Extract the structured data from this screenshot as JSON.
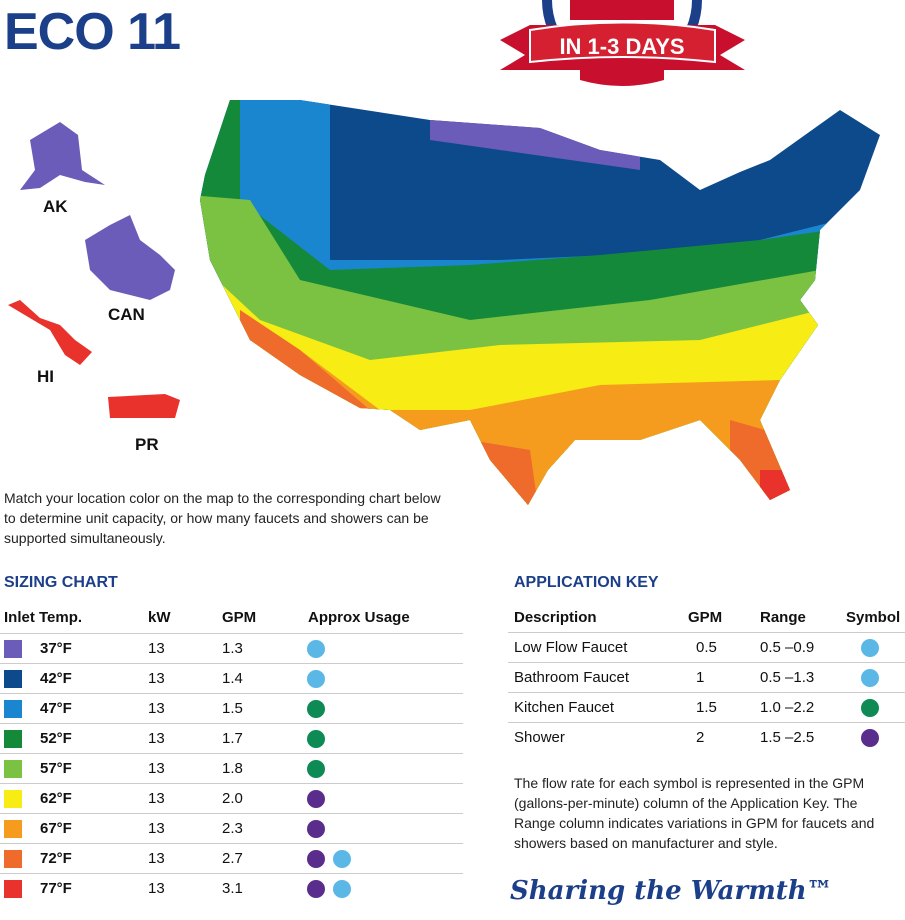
{
  "header": {
    "title": "ECO 11",
    "badge": "IN 1-3 DAYS"
  },
  "map": {
    "labels": [
      "AK",
      "CAN",
      "HI",
      "PR"
    ]
  },
  "intro": "Match your location color on the map to the corresponding chart below to determine unit capacity, or how many faucets and showers can be supported simultaneously.",
  "sizing_chart": {
    "title": "SIZING CHART",
    "columns": [
      "Inlet Temp.",
      "kW",
      "GPM",
      "Approx Usage"
    ],
    "rows": [
      {
        "color": "#6a5cb8",
        "temp": "37°F",
        "kw": "13",
        "gpm": "1.3"
      },
      {
        "color": "#0c4a8c",
        "temp": "42°F",
        "kw": "13",
        "gpm": "1.4"
      },
      {
        "color": "#1b86d0",
        "temp": "47°F",
        "kw": "13",
        "gpm": "1.5"
      },
      {
        "color": "#15893a",
        "temp": "52°F",
        "kw": "13",
        "gpm": "1.7"
      },
      {
        "color": "#7cc242",
        "temp": "57°F",
        "kw": "13",
        "gpm": "1.8"
      },
      {
        "color": "#f7ec13",
        "temp": "62°F",
        "kw": "13",
        "gpm": "2.0"
      },
      {
        "color": "#f59c1f",
        "temp": "67°F",
        "kw": "13",
        "gpm": "2.3"
      },
      {
        "color": "#ef6b2c",
        "temp": "72°F",
        "kw": "13",
        "gpm": "2.7"
      },
      {
        "color": "#e8322b",
        "temp": "77°F",
        "kw": "13",
        "gpm": "3.1"
      }
    ]
  },
  "application_key": {
    "title": "APPLICATION KEY",
    "columns": [
      "Description",
      "GPM",
      "Range",
      "Symbol"
    ],
    "rows": [
      {
        "description": "Low Flow Faucet",
        "gpm": "0.5",
        "range": "0.5 –0.9"
      },
      {
        "description": "Bathroom Faucet",
        "gpm": "1",
        "range": "0.5 –1.3"
      },
      {
        "description": "Kitchen Faucet",
        "gpm": "1.5",
        "range": "1.0 –2.2"
      },
      {
        "description": "Shower",
        "gpm": "2",
        "range": "1.5 –2.5"
      }
    ],
    "note": "The flow rate for each symbol is represented in the GPM (gallons-per-minute) column of the Application Key. The Range column indicates variations in GPM for faucets and showers based on manufacturer and style."
  },
  "footer": {
    "tagline": "Sharing the Warmth™"
  }
}
